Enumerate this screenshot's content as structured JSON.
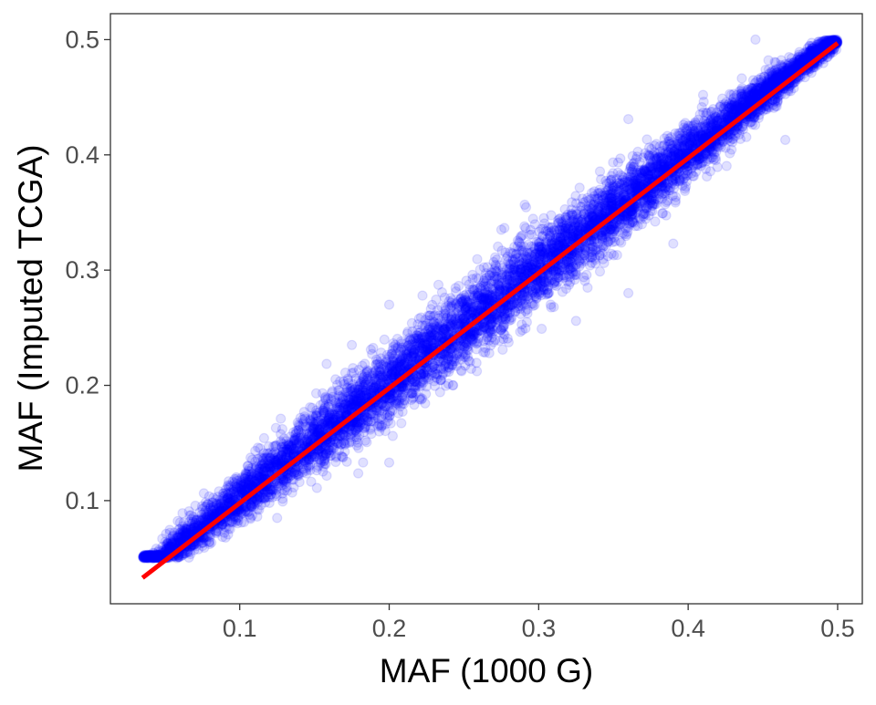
{
  "chart_data": {
    "type": "scatter",
    "title": "",
    "xlabel": "MAF (1000 G)",
    "ylabel": "MAF (Imputed TCGA)",
    "xlim": [
      0.0135,
      0.5165
    ],
    "ylim": [
      0.0105,
      0.5225
    ],
    "x_ticks": [
      0.1,
      0.2,
      0.3,
      0.4,
      0.5
    ],
    "y_ticks": [
      0.1,
      0.2,
      0.3,
      0.4,
      0.5
    ],
    "x_tick_labels": [
      "0.1",
      "0.2",
      "0.3",
      "0.4",
      "0.5"
    ],
    "y_tick_labels": [
      "0.1",
      "0.2",
      "0.3",
      "0.4",
      "0.5"
    ],
    "grid": false,
    "legend": "none",
    "point_color": "#0000ff",
    "point_opacity": 0.12,
    "line_color": "#ff0000",
    "fit_line": {
      "x": [
        0.035,
        0.5
      ],
      "y": [
        0.033,
        0.497
      ]
    },
    "series": [
      {
        "points_description_density": "approximately 8000 points scattered tightly around the line y = x, spread widening slightly in the middle range, clipped near 0.05 and 0.5",
        "x_range": [
          0.035,
          0.5
        ],
        "y_range": [
          0.05,
          0.5
        ],
        "count": 8000
      }
    ],
    "notable_points": [
      {
        "x": 0.2,
        "y": 0.27
      },
      {
        "x": 0.2,
        "y": 0.133
      },
      {
        "x": 0.36,
        "y": 0.28
      },
      {
        "x": 0.36,
        "y": 0.431
      },
      {
        "x": 0.41,
        "y": 0.452
      },
      {
        "x": 0.39,
        "y": 0.323
      },
      {
        "x": 0.325,
        "y": 0.256
      },
      {
        "x": 0.465,
        "y": 0.413
      },
      {
        "x": 0.445,
        "y": 0.5
      },
      {
        "x": 0.275,
        "y": 0.335
      },
      {
        "x": 0.175,
        "y": 0.235
      },
      {
        "x": 0.125,
        "y": 0.085
      }
    ]
  }
}
